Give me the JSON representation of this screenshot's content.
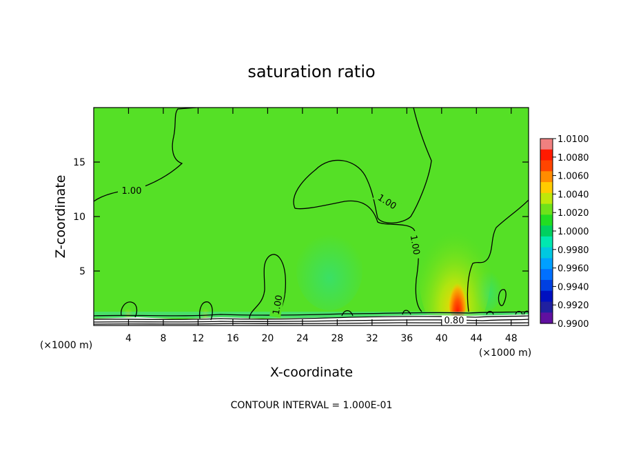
{
  "chart_data": {
    "type": "heatmap",
    "title": "saturation ratio",
    "xlabel": "X-coordinate",
    "ylabel": "Z-coordinate",
    "x_unit_label": "(×1000 m)",
    "xlim": [
      0,
      50
    ],
    "ylim": [
      0,
      20
    ],
    "x_ticks": [
      4,
      8,
      12,
      16,
      20,
      24,
      28,
      32,
      36,
      40,
      44,
      48
    ],
    "y_ticks": [
      5,
      10,
      15
    ],
    "contour_interval_text": "CONTOUR INTERVAL = 1.000E-01",
    "contour_labels": [
      "1.00",
      "1.00",
      "1.00",
      "1.00",
      "0.80"
    ],
    "colorbar": {
      "labels": [
        "1.0100",
        "1.0080",
        "1.0060",
        "1.0040",
        "1.0020",
        "1.0000",
        "0.9980",
        "0.9960",
        "0.9940",
        "0.9920",
        "0.9900"
      ],
      "colors": [
        "#f08080",
        "#ff1a00",
        "#ff4500",
        "#ff8c00",
        "#ffcc00",
        "#bfe80a",
        "#6ee21a",
        "#22dd22",
        "#00d060",
        "#00e8b0",
        "#00c8e0",
        "#00a0ff",
        "#0070ff",
        "#0040e0",
        "#0010c0",
        "#2020a0",
        "#6010a0"
      ]
    },
    "background_value": 1.0,
    "features": [
      {
        "name": "maximum near ground",
        "x_range": [
          40,
          43
        ],
        "z_range": [
          0.5,
          5
        ],
        "max_value": 1.008
      },
      {
        "name": "weak enhancement plume",
        "x_range": [
          37,
          46
        ],
        "z_range": [
          0.5,
          10
        ],
        "value": 1.001
      },
      {
        "name": "weak low region",
        "x_range": [
          25,
          32
        ],
        "z_range": [
          0.5,
          8
        ],
        "value": 0.999
      }
    ]
  }
}
